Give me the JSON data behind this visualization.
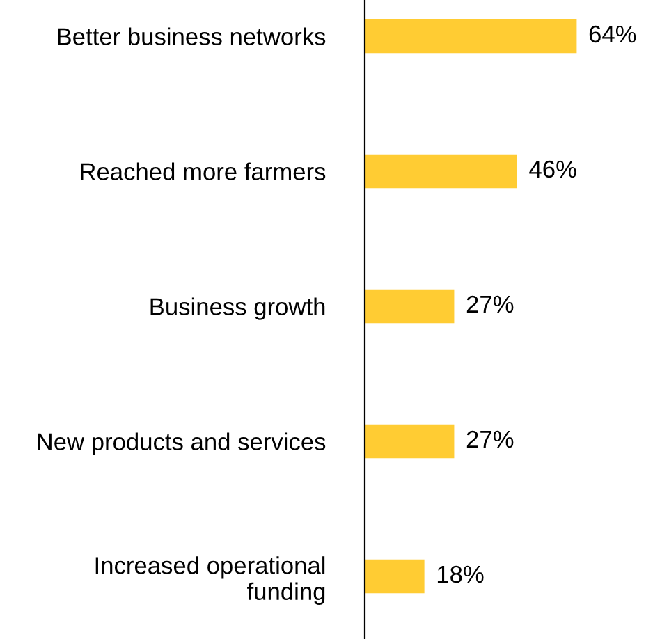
{
  "chart_data": {
    "type": "bar",
    "orientation": "horizontal",
    "categories": [
      "Better business networks",
      "Reached more farmers",
      "Business growth",
      "New products and services",
      "Increased operational\nfunding"
    ],
    "values": [
      64,
      46,
      27,
      27,
      18
    ],
    "value_labels": [
      "64%",
      "46%",
      "27%",
      "27%",
      "18%"
    ],
    "color": "#ffcc33",
    "grid": false,
    "legend": false
  }
}
